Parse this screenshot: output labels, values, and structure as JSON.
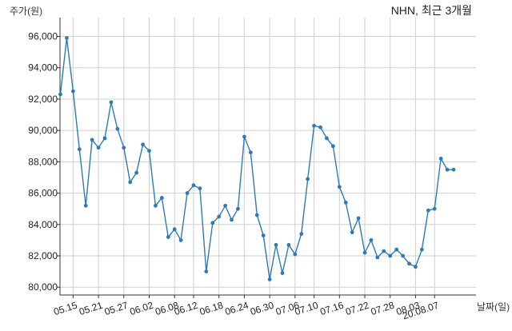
{
  "chart_data": {
    "type": "line",
    "title": "NHN, 최근 3개월",
    "ylabel": "주가(원)",
    "xlabel": "날짜(일)",
    "ylim": [
      79500,
      97200
    ],
    "yticks": [
      80000,
      82000,
      84000,
      86000,
      88000,
      90000,
      92000,
      94000,
      96000
    ],
    "ytick_labels": [
      "80,000",
      "82,000",
      "84,000",
      "86,000",
      "88,000",
      "90,000",
      "92,000",
      "94,000",
      "96,000"
    ],
    "xtick_labels": [
      "05.15",
      "05.21",
      "05.27",
      "06.02",
      "06.08",
      "06.12",
      "06.18",
      "06.24",
      "06.30",
      "07.06",
      "07.10",
      "07.16",
      "07.22",
      "07.28",
      "08.03",
      "20.08.07"
    ],
    "xtick_index": [
      2,
      6,
      10,
      14,
      18,
      21,
      25,
      29,
      33,
      37,
      40,
      44,
      48,
      52,
      56,
      59
    ],
    "grid": true,
    "color": "#2b7bb9",
    "series": [
      {
        "name": "",
        "values": [
          92300,
          95900,
          92500,
          88800,
          85200,
          89400,
          88900,
          89500,
          91800,
          90100,
          88900,
          86700,
          87300,
          89100,
          88700,
          85200,
          85700,
          83200,
          83700,
          83000,
          86000,
          86500,
          86300,
          81000,
          84100,
          84500,
          85200,
          84300,
          85000,
          89600,
          88600,
          84600,
          83300,
          80500,
          82700,
          80900,
          82700,
          82100,
          83400,
          86900,
          90300,
          90200,
          89500,
          89000,
          86400,
          85400,
          83500,
          84400,
          82200,
          83000,
          81900,
          82300,
          82000,
          82400,
          82000,
          81500,
          81300,
          82400,
          84900,
          85000,
          88200,
          87500,
          87500
        ]
      }
    ]
  }
}
